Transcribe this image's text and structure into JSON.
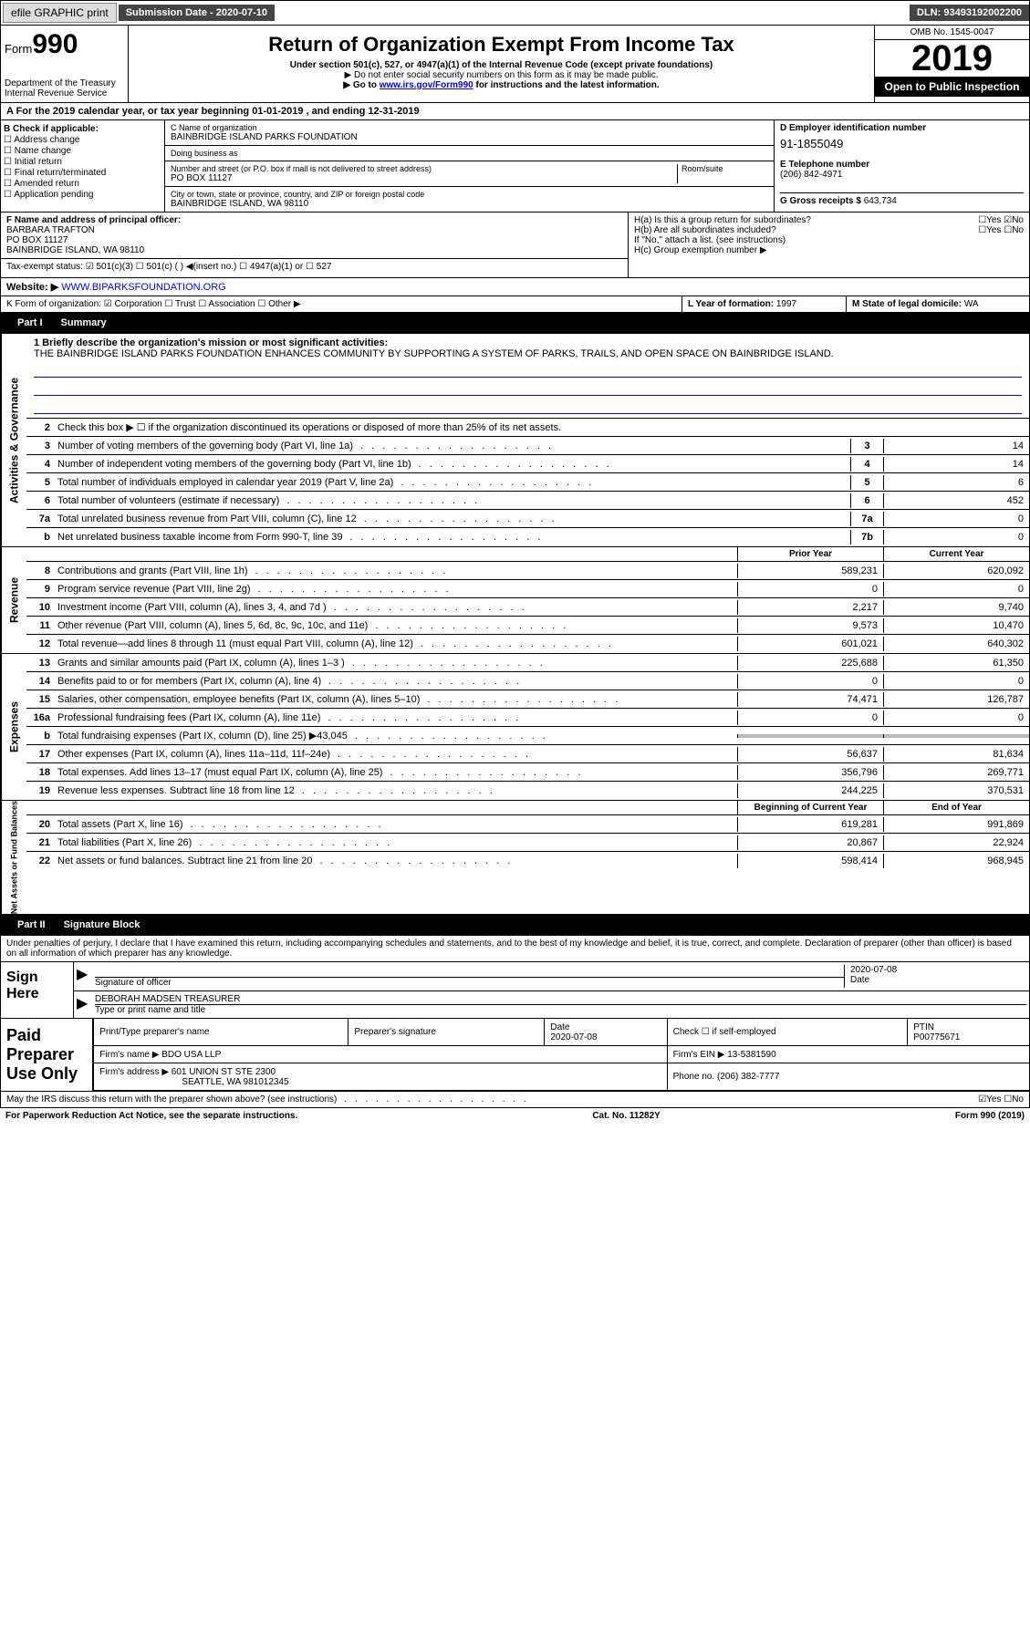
{
  "topbar": {
    "efile": "efile GRAPHIC print",
    "sub_lbl": "Submission Date - ",
    "sub_date": "2020-07-10",
    "dln_lbl": "DLN: ",
    "dln": "93493192002200"
  },
  "hdr": {
    "form_prefix": "Form",
    "form_num": "990",
    "dept": "Department of the Treasury\nInternal Revenue Service",
    "title": "Return of Organization Exempt From Income Tax",
    "sub1": "Under section 501(c), 527, or 4947(a)(1) of the Internal Revenue Code (except private foundations)",
    "sub2": "▶ Do not enter social security numbers on this form as it may be made public.",
    "sub3_pre": "▶ Go to ",
    "sub3_link": "www.irs.gov/Form990",
    "sub3_post": " for instructions and the latest information.",
    "omb": "OMB No. 1545-0047",
    "year": "2019",
    "open": "Open to Public Inspection"
  },
  "A": {
    "txt": "A For the 2019 calendar year, or tax year beginning 01-01-2019   , and ending 12-31-2019"
  },
  "B": {
    "lbl": "B Check if applicable:",
    "items": [
      "☐ Address change",
      "☐ Name change",
      "☐ Initial return",
      "☐ Final return/terminated",
      "☐ Amended return",
      "☐ Application pending"
    ]
  },
  "C": {
    "name_lbl": "C Name of organization",
    "name": "BAINBRIDGE ISLAND PARKS FOUNDATION",
    "dba_lbl": "Doing business as",
    "dba": "",
    "addr_lbl": "Number and street (or P.O. box if mail is not delivered to street address)",
    "room_lbl": "Room/suite",
    "addr": "PO BOX 11127",
    "city_lbl": "City or town, state or province, country, and ZIP or foreign postal code",
    "city": "BAINBRIDGE ISLAND, WA  98110"
  },
  "D": {
    "lbl": "D Employer identification number",
    "ein": "91-1855049"
  },
  "E": {
    "lbl": "E Telephone number",
    "tel": "(206) 842-4971"
  },
  "G": {
    "lbl": "G Gross receipts $ ",
    "amt": "643,734"
  },
  "F": {
    "lbl": "F  Name and address of principal officer:",
    "name": "BARBARA TRAFTON",
    "addr1": "PO BOX 11127",
    "addr2": "BAINBRIDGE ISLAND, WA  98110"
  },
  "H": {
    "a": "H(a)  Is this a group return for subordinates?",
    "a_yes": "☐Yes",
    "a_no": "☑No",
    "b": "H(b)  Are all subordinates included?",
    "b_yn": "☐Yes  ☐No",
    "b2": "If \"No,\" attach a list. (see instructions)",
    "c": "H(c)  Group exemption number ▶"
  },
  "I": {
    "lbl": "Tax-exempt status:",
    "opts": "☑ 501(c)(3)   ☐ 501(c) (  ) ◀(insert no.)   ☐ 4947(a)(1) or  ☐ 527"
  },
  "J": {
    "lbl": "Website: ▶",
    "url": "WWW.BIPARKSFOUNDATION.ORG"
  },
  "K": {
    "lbl": "K Form of organization:",
    "opts": "☑ Corporation  ☐ Trust  ☐ Association  ☐ Other ▶"
  },
  "L": {
    "lbl": "L Year of formation: ",
    "val": "1997"
  },
  "M": {
    "lbl": "M State of legal domicile: ",
    "val": "WA"
  },
  "part1": {
    "hdr": "Part I",
    "title": "Summary"
  },
  "summary": {
    "mission_lbl": "1  Briefly describe the organization's mission or most significant activities:",
    "mission": "THE BAINBRIDGE ISLAND PARKS FOUNDATION ENHANCES COMMUNITY BY SUPPORTING A SYSTEM OF PARKS, TRAILS, AND OPEN SPACE ON BAINBRIDGE ISLAND.",
    "l2": "Check this box ▶ ☐  if the organization discontinued its operations or disposed of more than 25% of its net assets.",
    "lines_ag": [
      {
        "n": "3",
        "t": "Number of voting members of the governing body (Part VI, line 1a)",
        "b": "3",
        "v": "14"
      },
      {
        "n": "4",
        "t": "Number of independent voting members of the governing body (Part VI, line 1b)",
        "b": "4",
        "v": "14"
      },
      {
        "n": "5",
        "t": "Total number of individuals employed in calendar year 2019 (Part V, line 2a)",
        "b": "5",
        "v": "6"
      },
      {
        "n": "6",
        "t": "Total number of volunteers (estimate if necessary)",
        "b": "6",
        "v": "452"
      },
      {
        "n": "7a",
        "t": "Total unrelated business revenue from Part VIII, column (C), line 12",
        "b": "7a",
        "v": "0"
      },
      {
        "n": "b",
        "t": "Net unrelated business taxable income from Form 990-T, line 39",
        "b": "7b",
        "v": "0"
      }
    ],
    "col_prior": "Prior Year",
    "col_curr": "Current Year",
    "rev": [
      {
        "n": "8",
        "t": "Contributions and grants (Part VIII, line 1h)",
        "p": "589,231",
        "c": "620,092"
      },
      {
        "n": "9",
        "t": "Program service revenue (Part VIII, line 2g)",
        "p": "0",
        "c": "0"
      },
      {
        "n": "10",
        "t": "Investment income (Part VIII, column (A), lines 3, 4, and 7d )",
        "p": "2,217",
        "c": "9,740"
      },
      {
        "n": "11",
        "t": "Other revenue (Part VIII, column (A), lines 5, 6d, 8c, 9c, 10c, and 11e)",
        "p": "9,573",
        "c": "10,470"
      },
      {
        "n": "12",
        "t": "Total revenue—add lines 8 through 11 (must equal Part VIII, column (A), line 12)",
        "p": "601,021",
        "c": "640,302"
      }
    ],
    "exp": [
      {
        "n": "13",
        "t": "Grants and similar amounts paid (Part IX, column (A), lines 1–3 )",
        "p": "225,688",
        "c": "61,350"
      },
      {
        "n": "14",
        "t": "Benefits paid to or for members (Part IX, column (A), line 4)",
        "p": "0",
        "c": "0"
      },
      {
        "n": "15",
        "t": "Salaries, other compensation, employee benefits (Part IX, column (A), lines 5–10)",
        "p": "74,471",
        "c": "126,787"
      },
      {
        "n": "16a",
        "t": "Professional fundraising fees (Part IX, column (A), line 11e)",
        "p": "0",
        "c": "0"
      },
      {
        "n": "b",
        "t": "Total fundraising expenses (Part IX, column (D), line 25) ▶43,045",
        "p": "",
        "c": "",
        "shade": true
      },
      {
        "n": "17",
        "t": "Other expenses (Part IX, column (A), lines 11a–11d, 11f–24e)",
        "p": "56,637",
        "c": "81,634"
      },
      {
        "n": "18",
        "t": "Total expenses. Add lines 13–17 (must equal Part IX, column (A), line 25)",
        "p": "356,796",
        "c": "269,771"
      },
      {
        "n": "19",
        "t": "Revenue less expenses. Subtract line 18 from line 12",
        "p": "244,225",
        "c": "370,531"
      }
    ],
    "col_beg": "Beginning of Current Year",
    "col_end": "End of Year",
    "na": [
      {
        "n": "20",
        "t": "Total assets (Part X, line 16)",
        "p": "619,281",
        "c": "991,869"
      },
      {
        "n": "21",
        "t": "Total liabilities (Part X, line 26)",
        "p": "20,867",
        "c": "22,924"
      },
      {
        "n": "22",
        "t": "Net assets or fund balances. Subtract line 21 from line 20",
        "p": "598,414",
        "c": "968,945"
      }
    ]
  },
  "vtabs": {
    "ag": "Activities & Governance",
    "rev": "Revenue",
    "exp": "Expenses",
    "na": "Net Assets or Fund Balances"
  },
  "part2": {
    "hdr": "Part II",
    "title": "Signature Block"
  },
  "sig": {
    "decl": "Under penalties of perjury, I declare that I have examined this return, including accompanying schedules and statements, and to the best of my knowledge and belief, it is true, correct, and complete. Declaration of preparer (other than officer) is based on all information of which preparer has any knowledge.",
    "sign_here": "Sign Here",
    "sig_lbl": "Signature of officer",
    "date_lbl": "Date",
    "date": "2020-07-08",
    "name": "DEBORAH MADSEN  TREASURER",
    "name_lbl": "Type or print name and title"
  },
  "prep": {
    "lbl": "Paid Preparer Use Only",
    "h": [
      "Print/Type preparer's name",
      "Preparer's signature",
      "Date",
      "Check ☐ if self-employed",
      "PTIN"
    ],
    "r1": [
      "",
      "",
      "2020-07-08",
      "",
      "P00775671"
    ],
    "firm_lbl": "Firm's name    ▶",
    "firm": "BDO USA LLP",
    "ein_lbl": "Firm's EIN ▶",
    "ein": "13-5381590",
    "addr_lbl": "Firm's address ▶",
    "addr": "601 UNION ST STE 2300",
    "addr2": "SEATTLE, WA  981012345",
    "phone_lbl": "Phone no. ",
    "phone": "(206) 382-7777"
  },
  "discuss": {
    "txt": "May the IRS discuss this return with the preparer shown above? (see instructions)",
    "yn": "☑Yes  ☐No"
  },
  "foot": {
    "l": "For Paperwork Reduction Act Notice, see the separate instructions.",
    "m": "Cat. No. 11282Y",
    "r": "Form 990 (2019)"
  }
}
